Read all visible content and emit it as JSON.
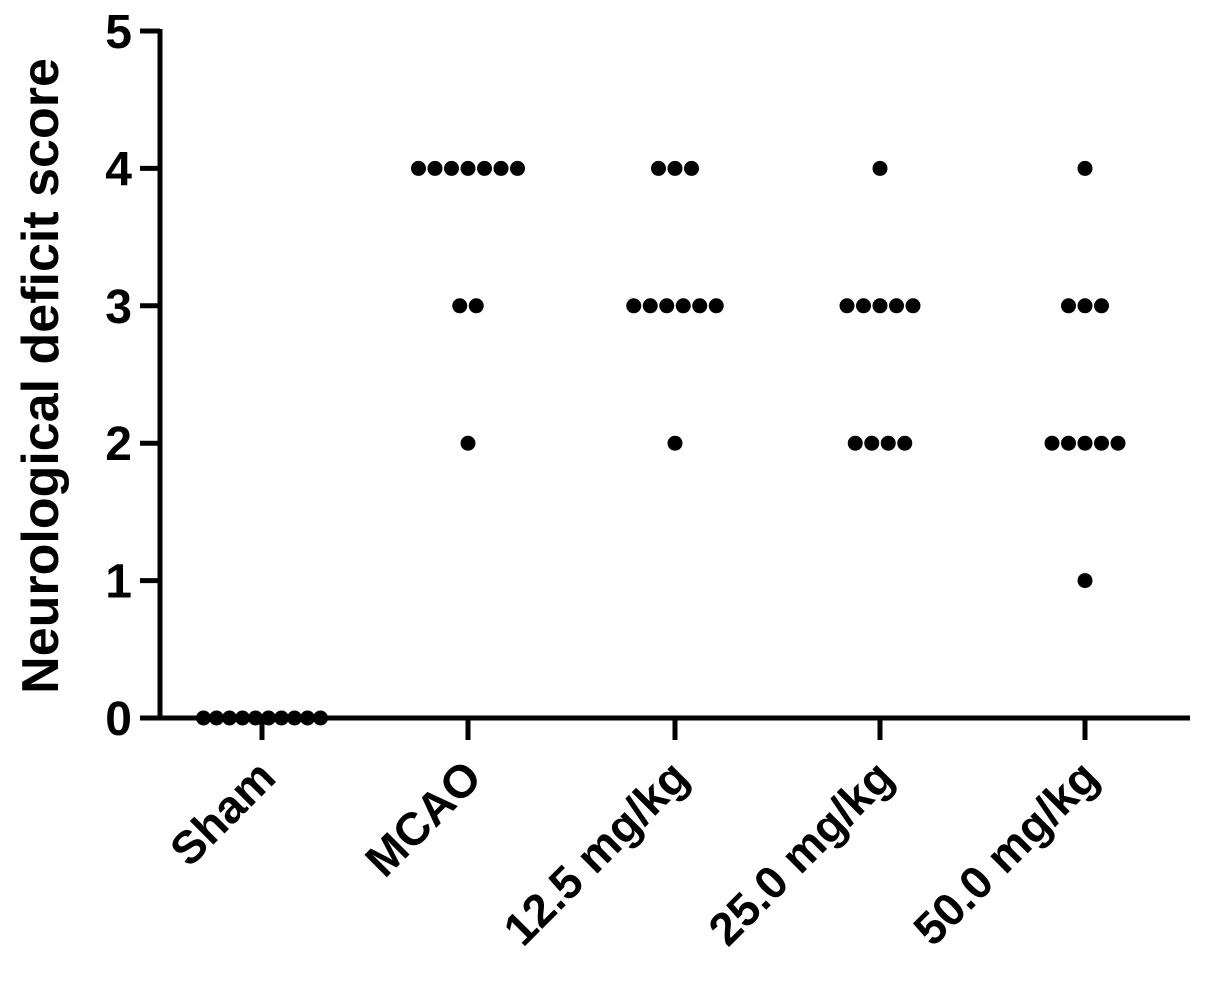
{
  "chart_data": {
    "type": "scatter",
    "title": "",
    "xlabel": "",
    "ylabel": "Neurological deficit score",
    "ylim": [
      0,
      5
    ],
    "yticks": [
      "0",
      "1",
      "2",
      "3",
      "4",
      "5"
    ],
    "categories": [
      "Sham",
      "MCAO",
      "12.5 mg/kg",
      "25.0 mg/kg",
      "50.0 mg/kg"
    ],
    "groups": [
      {
        "label": "Sham",
        "values": [
          0,
          0,
          0,
          0,
          0,
          0,
          0,
          0,
          0,
          0
        ]
      },
      {
        "label": "MCAO",
        "values": [
          4,
          4,
          4,
          4,
          4,
          4,
          4,
          3,
          3,
          2
        ]
      },
      {
        "label": "12.5 mg/kg",
        "values": [
          4,
          4,
          4,
          3,
          3,
          3,
          3,
          3,
          3,
          2
        ]
      },
      {
        "label": "25.0 mg/kg",
        "values": [
          4,
          3,
          3,
          3,
          3,
          3,
          2,
          2,
          2,
          2
        ]
      },
      {
        "label": "50.0 mg/kg",
        "values": [
          4,
          3,
          3,
          3,
          2,
          2,
          2,
          2,
          2,
          1
        ]
      }
    ],
    "grid": false,
    "legend": "none",
    "colors": {
      "points": "#000000",
      "axes": "#000000"
    }
  }
}
